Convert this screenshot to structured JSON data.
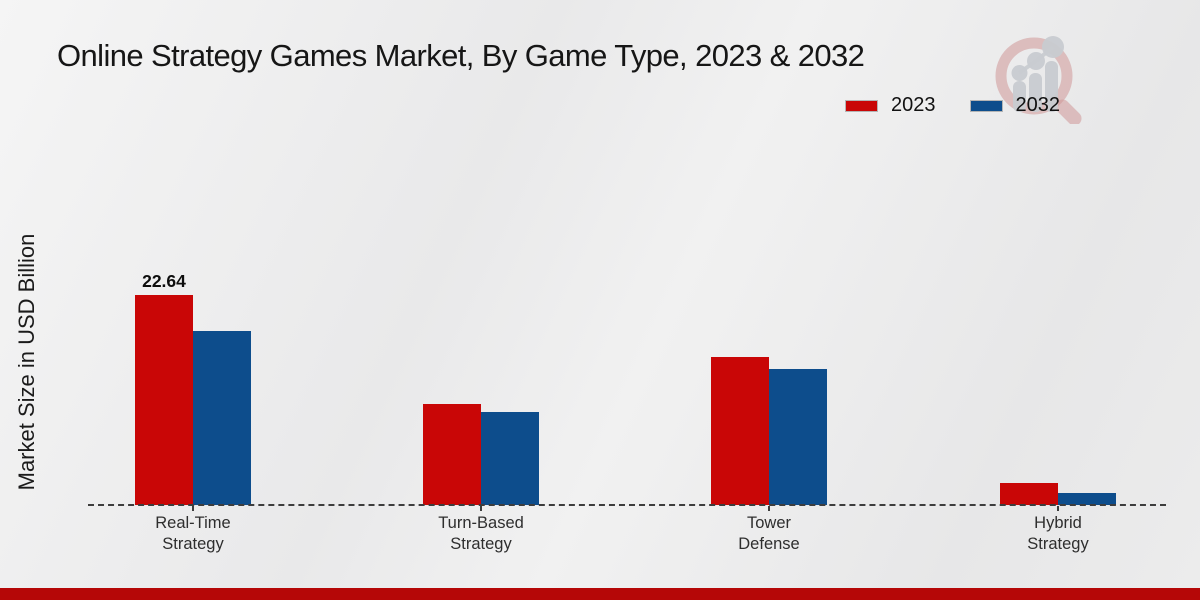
{
  "title": "Online Strategy Games Market, By Game Type, 2023 & 2032",
  "ylabel": "Market Size in USD Billion",
  "legend": [
    {
      "label": "2023",
      "color": "#c90606"
    },
    {
      "label": "2032",
      "color": "#0d4d8c"
    }
  ],
  "footer_color": "#b50707",
  "logo_name": "market-research-future-logo",
  "chart_data": {
    "type": "bar",
    "title": "Online Strategy Games Market, By Game Type, 2023 & 2032",
    "xlabel": "",
    "ylabel": "Market Size in USD Billion",
    "categories": [
      "Real-Time\nStrategy",
      "Turn-Based\nStrategy",
      "Tower\nDefense",
      "Hybrid\nStrategy"
    ],
    "series": [
      {
        "name": "2023",
        "color": "#c90606",
        "values": [
          22.64,
          10.9,
          16.0,
          2.4
        ]
      },
      {
        "name": "2032",
        "color": "#0d4d8c",
        "values": [
          18.8,
          10.0,
          14.7,
          1.3
        ]
      }
    ],
    "value_labels": [
      {
        "series_index": 0,
        "category_index": 0,
        "text": "22.64"
      }
    ],
    "ylim": [
      0,
      24
    ],
    "grid": false,
    "axis_style": "dashed-baseline-only",
    "legend_position": "top-right"
  }
}
